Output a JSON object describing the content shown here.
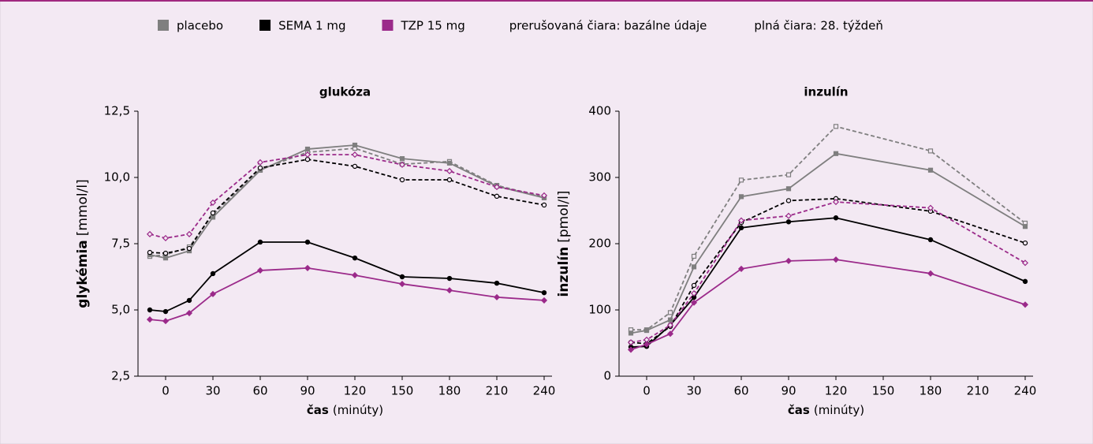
{
  "notes": [
    "prerušovaná čiara: bazálne údaje",
    "plná čiara: 28. týždeň"
  ],
  "chart_data": [
    {
      "type": "line",
      "title": "glukóza",
      "ylabel": [
        "glykémia",
        "[mmol/l]"
      ],
      "xlabel": [
        "čas",
        "(minúty)"
      ],
      "x": [
        -10,
        0,
        15,
        30,
        60,
        90,
        120,
        150,
        180,
        210,
        240
      ],
      "xlim": [
        -17.5,
        245
      ],
      "xticks": [
        0,
        30,
        60,
        90,
        120,
        150,
        180,
        210,
        240
      ],
      "ylim": [
        2.5,
        12.5
      ],
      "yticks": [
        {
          "value": 2.5,
          "label": "2,5"
        },
        {
          "value": 5,
          "label": "5,0"
        },
        {
          "value": 7.5,
          "label": "7,5"
        },
        {
          "value": 10,
          "label": "10,0"
        },
        {
          "value": 12.5,
          "label": "12,5"
        }
      ],
      "series": [
        {
          "name": "placebo",
          "color": "#7f7f7f",
          "dashed": true,
          "marker": "square",
          "values": [
            7.02,
            7.08,
            7.38,
            8.6,
            10.3,
            10.95,
            11.1,
            10.5,
            10.6,
            9.7,
            9.26
          ]
        },
        {
          "name": "placebo",
          "color": "#7f7f7f",
          "dashed": false,
          "marker": "square",
          "values": [
            7.08,
            6.96,
            7.23,
            8.5,
            10.27,
            11.07,
            11.22,
            10.71,
            10.54,
            9.67,
            9.23
          ]
        },
        {
          "name": "SEMA 1 mg",
          "color": "#000000",
          "dashed": true,
          "marker": "circle",
          "values": [
            7.17,
            7.14,
            7.32,
            8.66,
            10.36,
            10.68,
            10.42,
            9.91,
            9.91,
            9.29,
            8.96
          ]
        },
        {
          "name": "SEMA 1 mg",
          "color": "#000000",
          "dashed": false,
          "marker": "circle",
          "values": [
            5.0,
            4.94,
            5.36,
            6.37,
            7.56,
            7.56,
            6.96,
            6.25,
            6.19,
            6.01,
            5.65
          ]
        },
        {
          "name": "TZP 15 mg",
          "color": "#9b2a8a",
          "dashed": true,
          "marker": "diamond",
          "values": [
            7.86,
            7.71,
            7.86,
            9.05,
            10.57,
            10.86,
            10.86,
            10.48,
            10.24,
            9.64,
            9.32
          ]
        },
        {
          "name": "TZP 15 mg",
          "color": "#9b2a8a",
          "dashed": false,
          "marker": "diamond",
          "values": [
            4.64,
            4.58,
            4.88,
            5.6,
            6.49,
            6.58,
            6.31,
            5.98,
            5.74,
            5.48,
            5.36
          ]
        }
      ]
    },
    {
      "type": "line",
      "title": "inzulín",
      "ylabel": [
        "inzulín",
        "[pmol/l]"
      ],
      "xlabel": [
        "čas",
        "(minúty)"
      ],
      "x": [
        -10,
        0,
        15,
        30,
        60,
        90,
        120,
        180,
        240
      ],
      "xlim": [
        -17.5,
        245
      ],
      "xticks": [
        0,
        30,
        60,
        90,
        120,
        150,
        180,
        210,
        240
      ],
      "ylim": [
        0,
        400
      ],
      "yticks": [
        0,
        100,
        200,
        300,
        400
      ],
      "series": [
        {
          "name": "placebo",
          "color": "#7f7f7f",
          "dashed": true,
          "marker": "square",
          "values": [
            70,
            70,
            96,
            181,
            296,
            304,
            377,
            340,
            231
          ]
        },
        {
          "name": "placebo",
          "color": "#7f7f7f",
          "dashed": false,
          "marker": "square",
          "values": [
            65,
            69,
            85,
            165,
            271,
            283,
            336,
            311,
            226
          ]
        },
        {
          "name": "SEMA 1 mg",
          "color": "#000000",
          "dashed": true,
          "marker": "circle",
          "values": [
            51,
            49,
            75,
            137,
            232,
            265,
            268,
            249,
            201
          ]
        },
        {
          "name": "SEMA 1 mg",
          "color": "#000000",
          "dashed": false,
          "marker": "circle",
          "values": [
            44,
            45,
            77,
            119,
            224,
            233,
            239,
            206,
            143
          ]
        },
        {
          "name": "TZP 15 mg",
          "color": "#9b2a8a",
          "dashed": true,
          "marker": "diamond",
          "values": [
            51,
            55,
            77,
            125,
            235,
            242,
            263,
            254,
            171
          ]
        },
        {
          "name": "TZP 15 mg",
          "color": "#9b2a8a",
          "dashed": false,
          "marker": "diamond",
          "values": [
            40,
            48,
            64,
            111,
            162,
            174,
            176,
            155,
            108
          ]
        }
      ]
    }
  ]
}
